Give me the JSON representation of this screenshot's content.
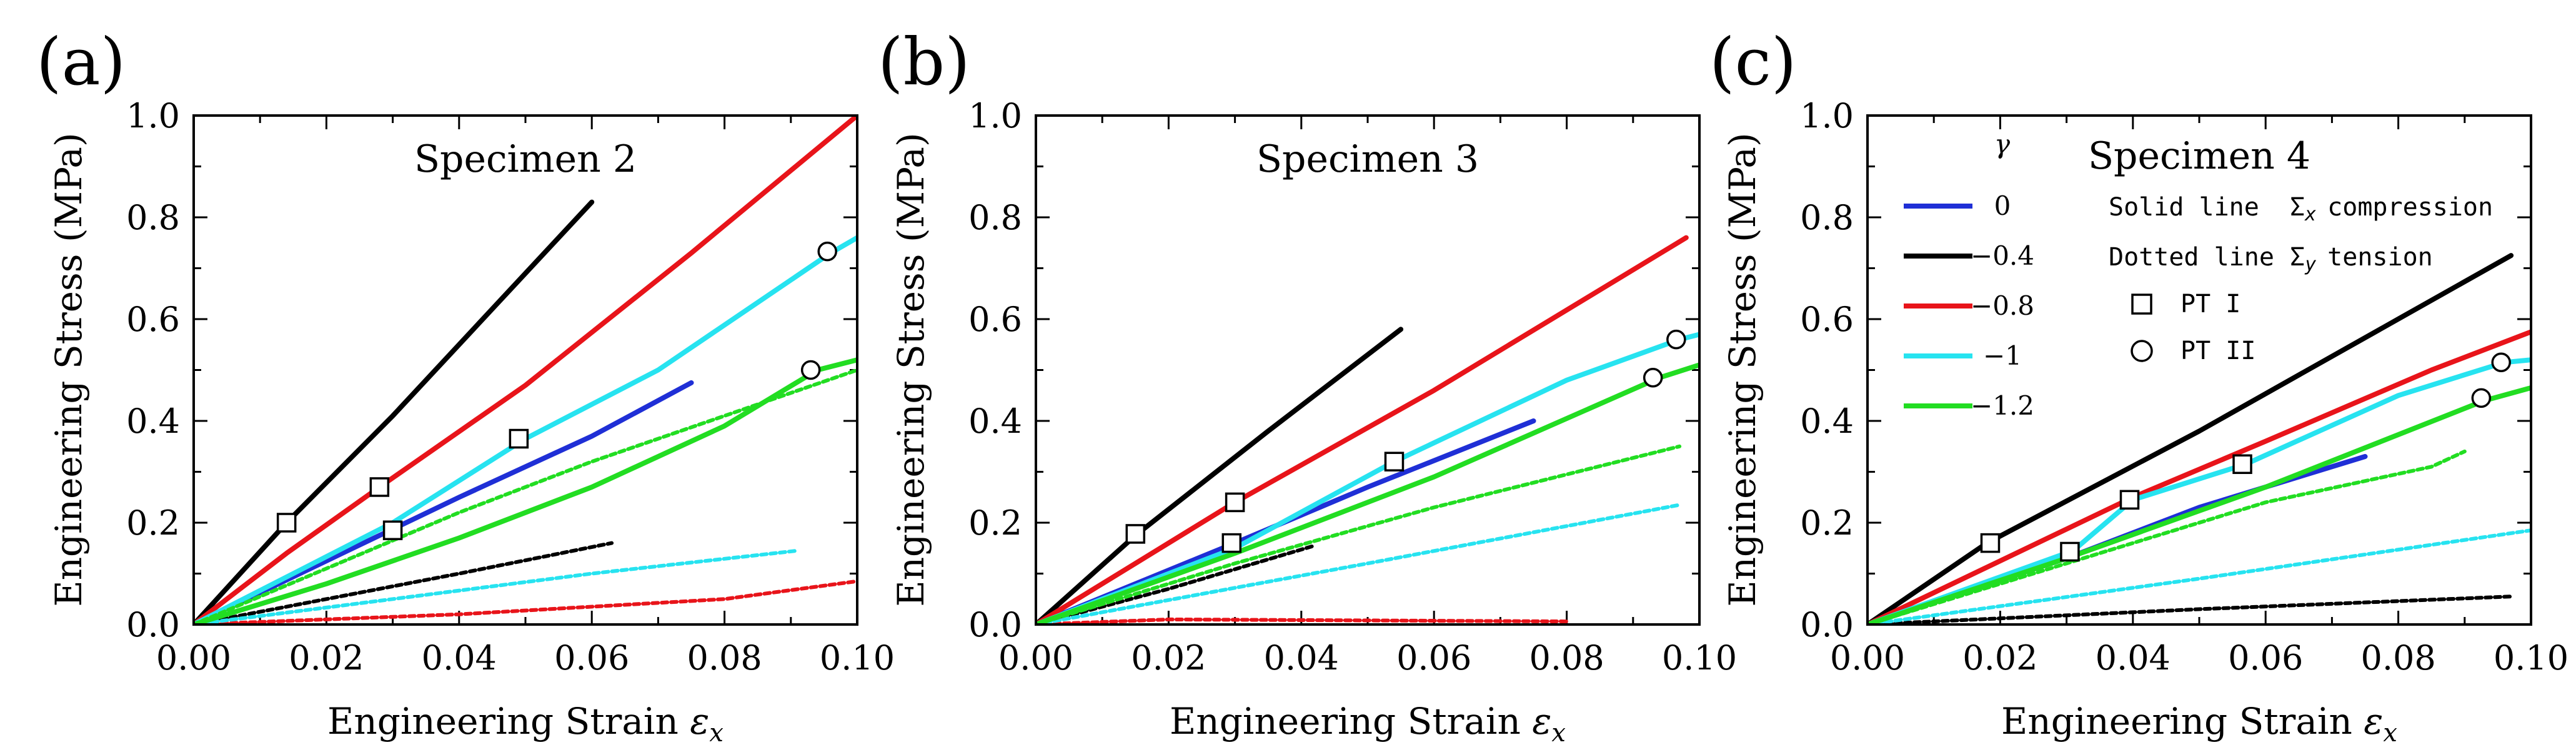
{
  "figure": {
    "panels": [
      "(a)",
      "(b)",
      "(c)"
    ]
  },
  "legend": {
    "gamma_header": "γ",
    "entries": [
      {
        "label": "0",
        "color": "#1f2fd6"
      },
      {
        "label": "−0.4",
        "color": "#000000"
      },
      {
        "label": "−0.8",
        "color": "#e8141a"
      },
      {
        "label": "−1",
        "color": "#27e3f0"
      },
      {
        "label": "−1.2",
        "color": "#22dd22"
      }
    ],
    "solid_label": "Solid line",
    "solid_desc_sym": "Σ",
    "solid_desc_sub": "x",
    "solid_desc_text": "compression",
    "dotted_label": "Dotted line",
    "dotted_desc_sym": "Σ",
    "dotted_desc_sub": "y",
    "dotted_desc_text": "tension",
    "pt1": "PT I",
    "pt2": "PT II"
  },
  "chart_data": [
    {
      "type": "line",
      "panel_label": "(a)",
      "title": "Specimen 2",
      "xlabel": "Engineering Strain",
      "xlabel_symbol": "ε",
      "xlabel_sub": "x",
      "ylabel": "Engineering Stress (MPa)",
      "xlim": [
        0,
        0.1
      ],
      "ylim": [
        0,
        1.0
      ],
      "xticks": [
        "0.00",
        "0.02",
        "0.04",
        "0.06",
        "0.08",
        "0.10"
      ],
      "yticks": [
        "0.0",
        "0.2",
        "0.4",
        "0.6",
        "0.8",
        "1.0"
      ],
      "series": [
        {
          "name": "γ=0 Σx",
          "color": "#1f2fd6",
          "style": "solid",
          "x": [
            0,
            0.02,
            0.04,
            0.06,
            0.075
          ],
          "y": [
            0,
            0.125,
            0.25,
            0.37,
            0.475
          ]
        },
        {
          "name": "γ=-0.4 Σx",
          "color": "#000000",
          "style": "solid",
          "x": [
            0,
            0.014,
            0.03,
            0.045,
            0.06
          ],
          "y": [
            0,
            0.2,
            0.41,
            0.62,
            0.83
          ]
        },
        {
          "name": "γ=-0.4 Σy",
          "color": "#000000",
          "style": "dotted",
          "x": [
            0,
            0.02,
            0.04,
            0.063
          ],
          "y": [
            0,
            0.05,
            0.1,
            0.16
          ]
        },
        {
          "name": "γ=-0.8 Σx",
          "color": "#e8141a",
          "style": "solid",
          "x": [
            0,
            0.014,
            0.028,
            0.05,
            0.075,
            0.1
          ],
          "y": [
            0,
            0.14,
            0.27,
            0.47,
            0.73,
            1.0
          ]
        },
        {
          "name": "γ=-0.8 Σy",
          "color": "#e8141a",
          "style": "dotted",
          "x": [
            0,
            0.04,
            0.08,
            0.1
          ],
          "y": [
            0,
            0.02,
            0.05,
            0.085
          ]
        },
        {
          "name": "γ=-1 Σx",
          "color": "#27e3f0",
          "style": "solid",
          "x": [
            0,
            0.015,
            0.03,
            0.05,
            0.07,
            0.096,
            0.1
          ],
          "y": [
            0,
            0.1,
            0.2,
            0.365,
            0.5,
            0.73,
            0.76
          ]
        },
        {
          "name": "γ=-1 Σy",
          "color": "#27e3f0",
          "style": "dotted",
          "x": [
            0,
            0.03,
            0.06,
            0.091
          ],
          "y": [
            0,
            0.05,
            0.1,
            0.145
          ]
        },
        {
          "name": "γ=-1.2 Σx",
          "color": "#22dd22",
          "style": "solid",
          "x": [
            0,
            0.02,
            0.04,
            0.06,
            0.08,
            0.094,
            0.1
          ],
          "y": [
            0,
            0.08,
            0.17,
            0.27,
            0.39,
            0.5,
            0.52
          ]
        },
        {
          "name": "γ=-1.2 Σy",
          "color": "#22dd22",
          "style": "dotted",
          "x": [
            0,
            0.02,
            0.04,
            0.06,
            0.08,
            0.1
          ],
          "y": [
            0,
            0.11,
            0.22,
            0.32,
            0.41,
            0.5
          ]
        }
      ],
      "markers": [
        {
          "shape": "square",
          "x": 0.014,
          "y": 0.2
        },
        {
          "shape": "square",
          "x": 0.028,
          "y": 0.27
        },
        {
          "shape": "square",
          "x": 0.03,
          "y": 0.185
        },
        {
          "shape": "square",
          "x": 0.049,
          "y": 0.365
        },
        {
          "shape": "circle",
          "x": 0.0955,
          "y": 0.733
        },
        {
          "shape": "circle",
          "x": 0.093,
          "y": 0.5
        }
      ]
    },
    {
      "type": "line",
      "panel_label": "(b)",
      "title": "Specimen 3",
      "xlabel": "Engineering Strain",
      "xlabel_symbol": "ε",
      "xlabel_sub": "x",
      "ylabel": "Engineering Stress (MPa)",
      "xlim": [
        0,
        0.1
      ],
      "ylim": [
        0,
        1.0
      ],
      "xticks": [
        "0.00",
        "0.02",
        "0.04",
        "0.06",
        "0.08",
        "0.10"
      ],
      "yticks": [
        "0.0",
        "0.2",
        "0.4",
        "0.6",
        "0.8",
        "1.0"
      ],
      "series": [
        {
          "name": "γ=0 Σx",
          "color": "#1f2fd6",
          "style": "solid",
          "x": [
            0,
            0.03,
            0.05,
            0.075
          ],
          "y": [
            0,
            0.16,
            0.27,
            0.4
          ]
        },
        {
          "name": "γ=-0.4 Σx",
          "color": "#000000",
          "style": "solid",
          "x": [
            0,
            0.015,
            0.035,
            0.055
          ],
          "y": [
            0,
            0.175,
            0.38,
            0.58
          ]
        },
        {
          "name": "γ=-0.4 Σy",
          "color": "#000000",
          "style": "dotted",
          "x": [
            0,
            0.02,
            0.042
          ],
          "y": [
            0,
            0.07,
            0.155
          ]
        },
        {
          "name": "γ=-0.8 Σx",
          "color": "#e8141a",
          "style": "solid",
          "x": [
            0,
            0.03,
            0.06,
            0.098
          ],
          "y": [
            0,
            0.24,
            0.46,
            0.76
          ]
        },
        {
          "name": "γ=-0.8 Σy",
          "color": "#e8141a",
          "style": "dotted",
          "x": [
            0,
            0.02,
            0.05,
            0.08
          ],
          "y": [
            0,
            0.01,
            0.008,
            0.006
          ]
        },
        {
          "name": "γ=-1 Σx",
          "color": "#27e3f0",
          "style": "solid",
          "x": [
            0,
            0.03,
            0.054,
            0.08,
            0.097,
            0.1
          ],
          "y": [
            0,
            0.15,
            0.32,
            0.48,
            0.56,
            0.57
          ]
        },
        {
          "name": "γ=-1 Σy",
          "color": "#27e3f0",
          "style": "dotted",
          "x": [
            0,
            0.05,
            0.097
          ],
          "y": [
            0,
            0.12,
            0.235
          ]
        },
        {
          "name": "γ=-1.2 Σx",
          "color": "#22dd22",
          "style": "solid",
          "x": [
            0,
            0.03,
            0.06,
            0.094,
            0.1
          ],
          "y": [
            0,
            0.14,
            0.29,
            0.485,
            0.51
          ]
        },
        {
          "name": "γ=-1.2 Σy",
          "color": "#22dd22",
          "style": "dotted",
          "x": [
            0,
            0.03,
            0.06,
            0.097
          ],
          "y": [
            0,
            0.12,
            0.23,
            0.35
          ]
        }
      ],
      "markers": [
        {
          "shape": "square",
          "x": 0.015,
          "y": 0.178
        },
        {
          "shape": "square",
          "x": 0.03,
          "y": 0.24
        },
        {
          "shape": "square",
          "x": 0.0295,
          "y": 0.16
        },
        {
          "shape": "square",
          "x": 0.054,
          "y": 0.32
        },
        {
          "shape": "circle",
          "x": 0.0965,
          "y": 0.56
        },
        {
          "shape": "circle",
          "x": 0.093,
          "y": 0.485
        }
      ]
    },
    {
      "type": "line",
      "panel_label": "(c)",
      "title": "Specimen 4",
      "xlabel": "Engineering Strain",
      "xlabel_symbol": "ε",
      "xlabel_sub": "x",
      "ylabel": "Engineering Stress (MPa)",
      "xlim": [
        0,
        0.1
      ],
      "ylim": [
        0,
        1.0
      ],
      "xticks": [
        "0.00",
        "0.02",
        "0.04",
        "0.06",
        "0.08",
        "0.10"
      ],
      "yticks": [
        "0.0",
        "0.2",
        "0.4",
        "0.6",
        "0.8",
        "1.0"
      ],
      "series": [
        {
          "name": "γ=0 Σx",
          "color": "#1f2fd6",
          "style": "solid",
          "x": [
            0,
            0.03,
            0.05,
            0.075
          ],
          "y": [
            0,
            0.13,
            0.23,
            0.33
          ]
        },
        {
          "name": "γ=-0.4 Σx",
          "color": "#000000",
          "style": "solid",
          "x": [
            0,
            0.018,
            0.05,
            0.097
          ],
          "y": [
            0,
            0.16,
            0.38,
            0.725
          ]
        },
        {
          "name": "γ=-0.4 Σy",
          "color": "#000000",
          "style": "dotted",
          "x": [
            0,
            0.05,
            0.097
          ],
          "y": [
            0,
            0.03,
            0.055
          ]
        },
        {
          "name": "γ=-0.8 Σx",
          "color": "#e8141a",
          "style": "solid",
          "x": [
            0,
            0.04,
            0.06,
            0.085,
            0.1
          ],
          "y": [
            0,
            0.25,
            0.36,
            0.5,
            0.575
          ]
        },
        {
          "name": "γ=-1 Σx",
          "color": "#27e3f0",
          "style": "solid",
          "x": [
            0,
            0.031,
            0.04,
            0.057,
            0.08,
            0.096,
            0.1
          ],
          "y": [
            0,
            0.145,
            0.245,
            0.315,
            0.45,
            0.515,
            0.52
          ]
        },
        {
          "name": "γ=-1 Σy",
          "color": "#27e3f0",
          "style": "dotted",
          "x": [
            0,
            0.05,
            0.1
          ],
          "y": [
            0,
            0.09,
            0.185
          ]
        },
        {
          "name": "γ=-1.2 Σx",
          "color": "#22dd22",
          "style": "solid",
          "x": [
            0,
            0.03,
            0.06,
            0.093,
            0.1
          ],
          "y": [
            0,
            0.13,
            0.27,
            0.44,
            0.465
          ]
        },
        {
          "name": "γ=-1.2 Σy",
          "color": "#22dd22",
          "style": "dotted",
          "x": [
            0,
            0.03,
            0.06,
            0.085,
            0.09
          ],
          "y": [
            0,
            0.12,
            0.24,
            0.31,
            0.34
          ]
        }
      ],
      "markers": [
        {
          "shape": "square",
          "x": 0.0185,
          "y": 0.16
        },
        {
          "shape": "square",
          "x": 0.0305,
          "y": 0.143
        },
        {
          "shape": "square",
          "x": 0.0395,
          "y": 0.245
        },
        {
          "shape": "square",
          "x": 0.0565,
          "y": 0.315
        },
        {
          "shape": "circle",
          "x": 0.0955,
          "y": 0.515
        },
        {
          "shape": "circle",
          "x": 0.0925,
          "y": 0.445
        }
      ]
    }
  ]
}
